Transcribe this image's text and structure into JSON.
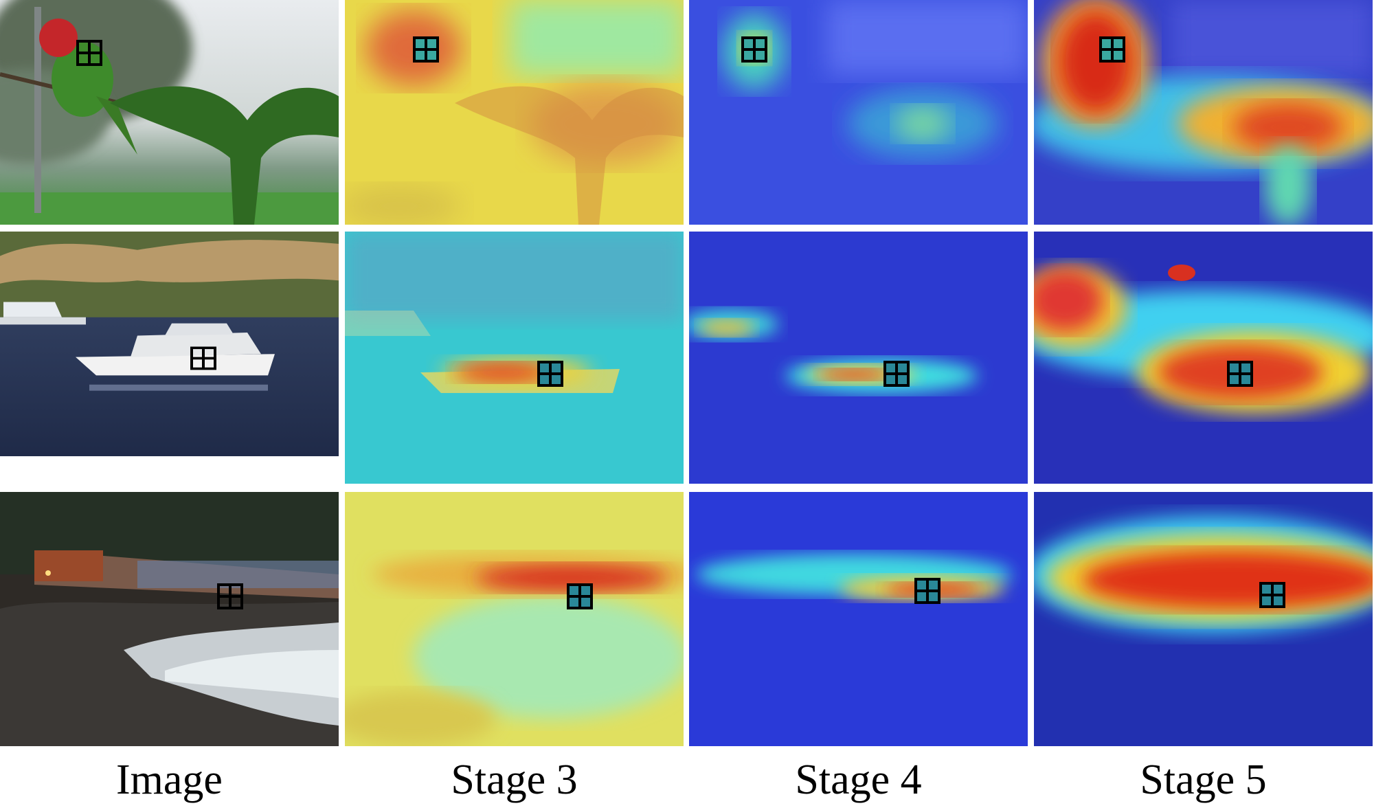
{
  "columns": [
    "Image",
    "Stage 3",
    "Stage 4",
    "Stage 5"
  ],
  "rows": [
    {
      "subject": "parrot"
    },
    {
      "subject": "boat"
    },
    {
      "subject": "train"
    }
  ]
}
